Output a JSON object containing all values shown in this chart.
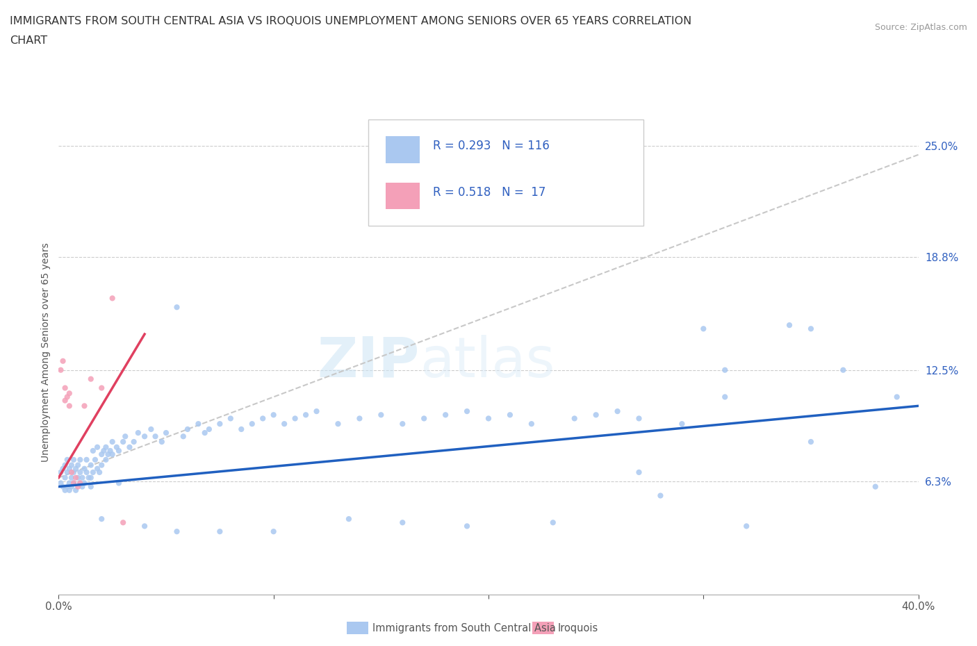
{
  "title_line1": "IMMIGRANTS FROM SOUTH CENTRAL ASIA VS IROQUOIS UNEMPLOYMENT AMONG SENIORS OVER 65 YEARS CORRELATION",
  "title_line2": "CHART",
  "source": "Source: ZipAtlas.com",
  "ylabel": "Unemployment Among Seniors over 65 years",
  "xlim": [
    0.0,
    0.4
  ],
  "ylim": [
    0.0,
    0.27
  ],
  "ytick_positions": [
    0.063,
    0.125,
    0.188,
    0.25
  ],
  "ytick_labels": [
    "6.3%",
    "12.5%",
    "18.8%",
    "25.0%"
  ],
  "xtick_positions": [
    0.0,
    0.1,
    0.2,
    0.3,
    0.4
  ],
  "xtick_labels": [
    "0.0%",
    "",
    "",
    "",
    "40.0%"
  ],
  "watermark_line1": "ZIP",
  "watermark_line2": "atlas",
  "blue_R": 0.293,
  "blue_N": 116,
  "pink_R": 0.518,
  "pink_N": 17,
  "blue_dot_color": "#aac8f0",
  "pink_dot_color": "#f4a0b8",
  "blue_line_color": "#2060c0",
  "pink_line_color": "#e04060",
  "dashed_line_color": "#c8c8c8",
  "legend_label_blue": "Immigrants from South Central Asia",
  "legend_label_pink": "Iroquois",
  "text_color": "#3060c0",
  "blue_scatter_x": [
    0.001,
    0.001,
    0.002,
    0.002,
    0.003,
    0.003,
    0.003,
    0.004,
    0.004,
    0.004,
    0.005,
    0.005,
    0.005,
    0.006,
    0.006,
    0.006,
    0.007,
    0.007,
    0.007,
    0.008,
    0.008,
    0.009,
    0.009,
    0.01,
    0.01,
    0.01,
    0.011,
    0.011,
    0.012,
    0.012,
    0.013,
    0.013,
    0.014,
    0.015,
    0.015,
    0.016,
    0.016,
    0.017,
    0.018,
    0.018,
    0.019,
    0.02,
    0.02,
    0.021,
    0.022,
    0.022,
    0.023,
    0.024,
    0.025,
    0.025,
    0.027,
    0.028,
    0.03,
    0.031,
    0.033,
    0.035,
    0.037,
    0.04,
    0.043,
    0.045,
    0.048,
    0.05,
    0.055,
    0.058,
    0.06,
    0.065,
    0.068,
    0.07,
    0.075,
    0.08,
    0.085,
    0.09,
    0.095,
    0.1,
    0.105,
    0.11,
    0.115,
    0.12,
    0.13,
    0.14,
    0.15,
    0.16,
    0.17,
    0.18,
    0.19,
    0.2,
    0.21,
    0.22,
    0.24,
    0.25,
    0.26,
    0.27,
    0.28,
    0.29,
    0.3,
    0.31,
    0.32,
    0.34,
    0.35,
    0.365,
    0.38,
    0.39,
    0.35,
    0.31,
    0.27,
    0.23,
    0.19,
    0.16,
    0.135,
    0.1,
    0.075,
    0.055,
    0.04,
    0.028,
    0.02,
    0.015
  ],
  "blue_scatter_y": [
    0.062,
    0.068,
    0.06,
    0.07,
    0.058,
    0.065,
    0.072,
    0.06,
    0.068,
    0.075,
    0.062,
    0.07,
    0.058,
    0.065,
    0.072,
    0.06,
    0.068,
    0.075,
    0.062,
    0.07,
    0.058,
    0.065,
    0.072,
    0.062,
    0.068,
    0.075,
    0.06,
    0.065,
    0.07,
    0.062,
    0.068,
    0.075,
    0.065,
    0.06,
    0.072,
    0.068,
    0.08,
    0.075,
    0.07,
    0.082,
    0.068,
    0.072,
    0.078,
    0.08,
    0.075,
    0.082,
    0.078,
    0.08,
    0.085,
    0.078,
    0.082,
    0.08,
    0.085,
    0.088,
    0.082,
    0.085,
    0.09,
    0.088,
    0.092,
    0.088,
    0.085,
    0.09,
    0.16,
    0.088,
    0.092,
    0.095,
    0.09,
    0.092,
    0.095,
    0.098,
    0.092,
    0.095,
    0.098,
    0.1,
    0.095,
    0.098,
    0.1,
    0.102,
    0.095,
    0.098,
    0.1,
    0.095,
    0.098,
    0.1,
    0.102,
    0.098,
    0.1,
    0.095,
    0.098,
    0.1,
    0.102,
    0.098,
    0.055,
    0.095,
    0.148,
    0.11,
    0.038,
    0.15,
    0.085,
    0.125,
    0.06,
    0.11,
    0.148,
    0.125,
    0.068,
    0.04,
    0.038,
    0.04,
    0.042,
    0.035,
    0.035,
    0.035,
    0.038,
    0.062,
    0.042,
    0.065
  ],
  "pink_scatter_x": [
    0.001,
    0.002,
    0.003,
    0.003,
    0.004,
    0.005,
    0.005,
    0.006,
    0.007,
    0.008,
    0.009,
    0.01,
    0.012,
    0.015,
    0.02,
    0.025,
    0.03
  ],
  "pink_scatter_y": [
    0.125,
    0.13,
    0.115,
    0.108,
    0.11,
    0.112,
    0.105,
    0.068,
    0.062,
    0.065,
    0.06,
    0.062,
    0.105,
    0.12,
    0.115,
    0.165,
    0.04
  ],
  "blue_trend_x0": 0.0,
  "blue_trend_y0": 0.06,
  "blue_trend_x1": 0.4,
  "blue_trend_y1": 0.105,
  "pink_trend_x0": 0.0,
  "pink_trend_y0": 0.065,
  "pink_trend_x1": 0.04,
  "pink_trend_y1": 0.145,
  "dashed_trend_x0": 0.0,
  "dashed_trend_y0": 0.065,
  "dashed_trend_x1": 0.4,
  "dashed_trend_y1": 0.245
}
